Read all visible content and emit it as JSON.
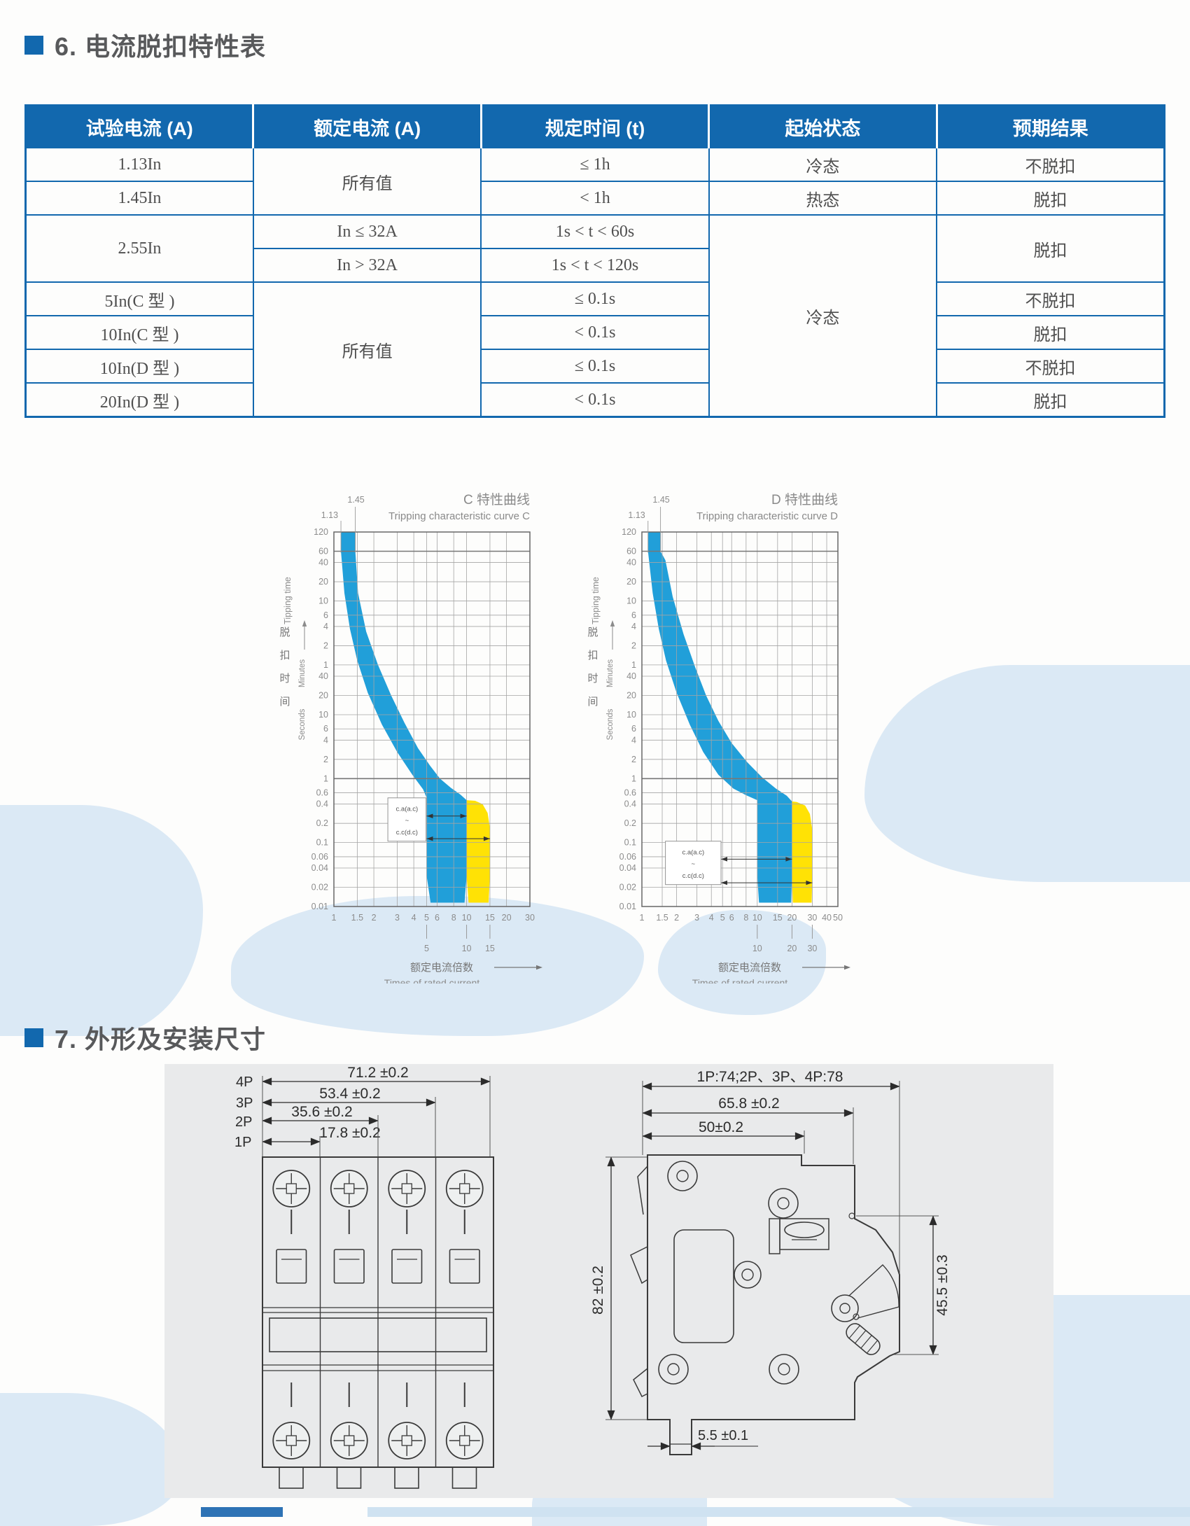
{
  "page": {
    "colors": {
      "accent": "#1268ae",
      "band_blue": "#219fd9",
      "band_yellow": "#ffe205",
      "grid": "#a5a5a5",
      "chart_text": "#8c8c8c",
      "panel": "#e9eaeb",
      "decor": "#dbe9f5",
      "drawing_line": "#3a3a3a",
      "table_text": "#4f4f4f",
      "title_text": "#58595b"
    },
    "section6": {
      "title": "6. 电流脱扣特性表"
    },
    "section7": {
      "title": "7. 外形及安装尺寸",
      "front_view": {
        "pole_labels": [
          "4P",
          "3P",
          "2P",
          "1P"
        ],
        "dims": {
          "p4": "71.2 ±0.2",
          "p3": "53.4 ±0.2",
          "p2": "35.6 ±0.2",
          "p1": "17.8 ±0.2"
        }
      },
      "side_view": {
        "width_top": "1P:74;2P、3P、4P:78",
        "width_mid": "65.8 ±0.2",
        "width_inner": "50±0.2",
        "height_left": "82 ±0.2",
        "height_right": "45.5 ±0.3",
        "foot": "5.5 ±0.1"
      }
    }
  },
  "table": {
    "headers": [
      "试验电流 (A)",
      "额定电流 (A)",
      "规定时间 (t)",
      "起始状态",
      "预期结果"
    ],
    "rows": [
      [
        {
          "t": "1.13In"
        },
        {
          "t": "所有值",
          "rs": 2
        },
        {
          "t": "≤ 1h"
        },
        {
          "t": "冷态"
        },
        {
          "t": "不脱扣"
        }
      ],
      [
        {
          "t": "1.45In"
        },
        {
          "t": "< 1h"
        },
        {
          "t": "热态"
        },
        {
          "t": "脱扣"
        }
      ],
      [
        {
          "t": "2.55In",
          "rs": 2
        },
        {
          "t": "In ≤ 32A"
        },
        {
          "t": "1s < t < 60s"
        },
        {
          "t": "冷态",
          "rs": 6
        },
        {
          "t": "脱扣",
          "rs": 2
        }
      ],
      [
        {
          "t": "In > 32A"
        },
        {
          "t": "1s < t < 120s"
        }
      ],
      [
        {
          "t": "5In(C 型 )"
        },
        {
          "t": "所有值",
          "rs": 4
        },
        {
          "t": "≤ 0.1s"
        },
        {
          "t": "不脱扣"
        }
      ],
      [
        {
          "t": "10In(C 型 )"
        },
        {
          "t": "< 0.1s"
        },
        {
          "t": "脱扣"
        }
      ],
      [
        {
          "t": "10In(D 型 )"
        },
        {
          "t": "≤ 0.1s"
        },
        {
          "t": "不脱扣"
        }
      ],
      [
        {
          "t": "20In(D 型 )"
        },
        {
          "t": "< 0.1s"
        },
        {
          "t": "脱扣"
        }
      ]
    ]
  },
  "chart_data": [
    {
      "id": "C",
      "type": "area",
      "title_cn": "C 特性曲线",
      "title_en": "Tripping characteristic curve C",
      "top_refs": [
        {
          "label": "1.45",
          "x": 1.45
        },
        {
          "label": "1.13",
          "x": 1.13
        }
      ],
      "x_ticks": [
        1,
        1.5,
        2,
        3,
        4,
        5,
        6,
        8,
        10,
        15,
        20,
        30
      ],
      "x_max": 30,
      "x_sub_marks": [
        5,
        10,
        15
      ],
      "y_minutes_ticks": [
        120,
        60,
        40,
        20,
        10,
        6,
        4,
        2,
        1
      ],
      "y_seconds_ticks": [
        40,
        20,
        10,
        6,
        4,
        2,
        1,
        0.6,
        0.4,
        0.2,
        0.1,
        0.06,
        0.04,
        0.02,
        0.01
      ],
      "y_axis": {
        "cn": "脱扣时间",
        "en": "Tipping time",
        "minutes": "Minutes",
        "seconds": "Seconds"
      },
      "x_axis": {
        "cn": "额定电流倍数",
        "en": "Times of rated current"
      },
      "bands": {
        "blue": [
          [
            1.13,
            7200
          ],
          [
            1.13,
            3600
          ],
          [
            1.2,
            800
          ],
          [
            1.32,
            220
          ],
          [
            1.5,
            70
          ],
          [
            1.8,
            22
          ],
          [
            2.3,
            7
          ],
          [
            3,
            2.6
          ],
          [
            3.9,
            1.15
          ],
          [
            4.7,
            0.68
          ],
          [
            5,
            0.5
          ],
          [
            5,
            0.03
          ],
          [
            5.35,
            0.0115
          ],
          [
            9.65,
            0.0115
          ],
          [
            10,
            0.03
          ],
          [
            10,
            0.46
          ],
          [
            9,
            0.56
          ],
          [
            7.6,
            0.72
          ],
          [
            6.3,
            1.0
          ],
          [
            5.3,
            1.6
          ],
          [
            4.3,
            3.0
          ],
          [
            3.4,
            7.5
          ],
          [
            2.7,
            20
          ],
          [
            2.15,
            60
          ],
          [
            1.75,
            200
          ],
          [
            1.52,
            800
          ],
          [
            1.45,
            3600
          ],
          [
            1.45,
            7200
          ]
        ],
        "yellow": [
          [
            10,
            0.46
          ],
          [
            11.6,
            0.45
          ],
          [
            13.2,
            0.4
          ],
          [
            14.4,
            0.29
          ],
          [
            15,
            0.17
          ],
          [
            15,
            0.03
          ],
          [
            14.65,
            0.0115
          ],
          [
            10.35,
            0.0115
          ],
          [
            10,
            0.03
          ]
        ]
      },
      "annotation": {
        "lines": [
          "c.a(a.c)",
          "~",
          "c.c(d.c)"
        ],
        "box": [
          2.55,
          0.5,
          4.95,
          0.105
        ],
        "arrows": [
          {
            "t": 0.26,
            "from": 5,
            "to": 10
          },
          {
            "t": 0.115,
            "from": 5,
            "to": 15
          }
        ]
      }
    },
    {
      "id": "D",
      "type": "area",
      "title_cn": "D 特性曲线",
      "title_en": "Tripping characteristic curve D",
      "top_refs": [
        {
          "label": "1.45",
          "x": 1.45
        },
        {
          "label": "1.13",
          "x": 1.13
        }
      ],
      "x_ticks": [
        1,
        1.5,
        2,
        3,
        4,
        5,
        6,
        8,
        10,
        15,
        20,
        30,
        40,
        50
      ],
      "x_max": 50,
      "x_sub_marks": [
        10,
        20,
        30
      ],
      "y_minutes_ticks": [
        120,
        60,
        40,
        20,
        10,
        6,
        4,
        2,
        1
      ],
      "y_seconds_ticks": [
        40,
        20,
        10,
        6,
        4,
        2,
        1,
        0.6,
        0.4,
        0.2,
        0.1,
        0.06,
        0.04,
        0.02,
        0.01
      ],
      "y_axis": {
        "cn": "脱扣时间",
        "en": "Tipping time",
        "minutes": "Minutes",
        "seconds": "Seconds"
      },
      "x_axis": {
        "cn": "额定电流倍数",
        "en": "Times of rated current"
      },
      "bands": {
        "blue": [
          [
            1.13,
            7200
          ],
          [
            1.13,
            3600
          ],
          [
            1.24,
            800
          ],
          [
            1.4,
            220
          ],
          [
            1.62,
            70
          ],
          [
            2.0,
            22
          ],
          [
            2.6,
            7
          ],
          [
            3.4,
            2.6
          ],
          [
            4.6,
            1.15
          ],
          [
            6.2,
            0.7
          ],
          [
            8,
            0.55
          ],
          [
            10,
            0.46
          ],
          [
            10,
            0.03
          ],
          [
            10.35,
            0.0115
          ],
          [
            19.65,
            0.0115
          ],
          [
            20,
            0.03
          ],
          [
            20,
            0.44
          ],
          [
            18,
            0.54
          ],
          [
            14.5,
            0.7
          ],
          [
            11,
            1.05
          ],
          [
            8.2,
            1.8
          ],
          [
            6,
            3.6
          ],
          [
            4.6,
            8
          ],
          [
            3.6,
            20
          ],
          [
            2.9,
            55
          ],
          [
            2.3,
            180
          ],
          [
            1.85,
            700
          ],
          [
            1.6,
            2600
          ],
          [
            1.45,
            3600
          ],
          [
            1.45,
            7200
          ]
        ],
        "yellow": [
          [
            20,
            0.44
          ],
          [
            22,
            0.43
          ],
          [
            26,
            0.38
          ],
          [
            28.6,
            0.28
          ],
          [
            30,
            0.16
          ],
          [
            30,
            0.03
          ],
          [
            29.6,
            0.0115
          ],
          [
            20.35,
            0.0115
          ],
          [
            20,
            0.03
          ]
        ]
      },
      "annotation": {
        "lines": [
          "c.a(a.c)",
          "~",
          "c.c(d.c)"
        ],
        "box": [
          1.6,
          0.105,
          4.85,
          0.022
        ],
        "arrows": [
          {
            "t": 0.055,
            "from": 4.85,
            "to": 20
          },
          {
            "t": 0.0235,
            "from": 4.85,
            "to": 30
          }
        ]
      }
    }
  ]
}
